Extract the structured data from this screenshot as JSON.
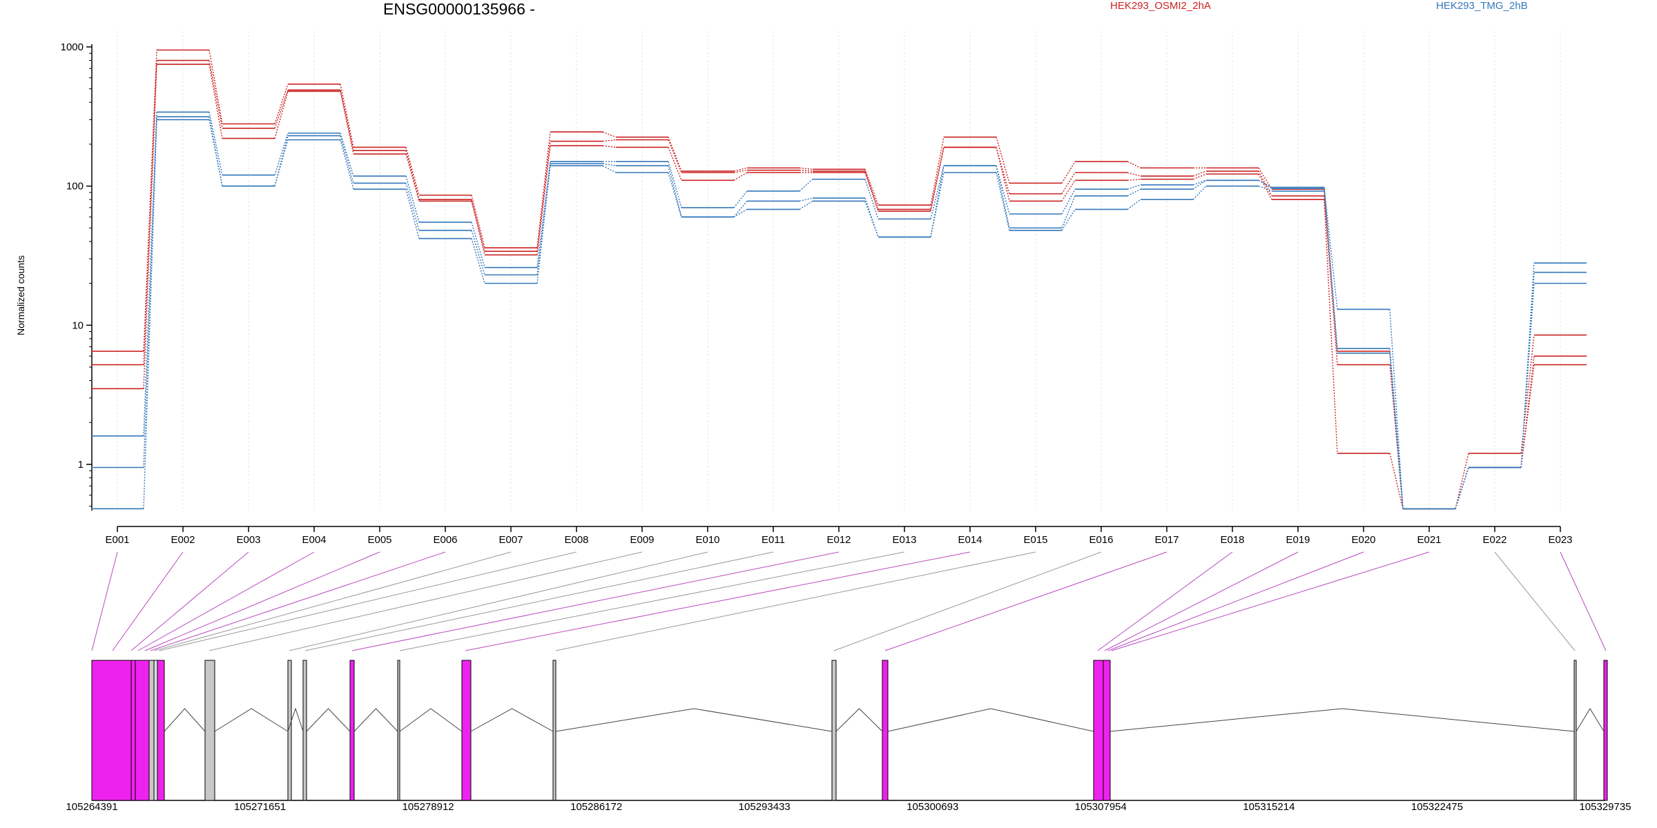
{
  "chart_data": {
    "type": "line",
    "title": "ENSG00000135966 -",
    "xlabel": "",
    "ylabel": "Normalized counts",
    "yscale": "log",
    "yticks": [
      "1",
      "10",
      "100",
      "1000"
    ],
    "categories": [
      "E001",
      "E002",
      "E003",
      "E004",
      "E005",
      "E006",
      "E007",
      "E008",
      "E009",
      "E010",
      "E011",
      "E012",
      "E013",
      "E014",
      "E015",
      "E016",
      "E017",
      "E018",
      "E019",
      "E020",
      "E021",
      "E022",
      "E023"
    ],
    "legend": [
      {
        "label": "HEK293_OSMI2_2hA",
        "color": "#cc2222"
      },
      {
        "label": "HEK293_TMG_2hB",
        "color": "#3377bb"
      }
    ],
    "series": [
      {
        "group": "red",
        "values": [
          6.5,
          950,
          280,
          540,
          190,
          86,
          36,
          245,
          225,
          128,
          135,
          132,
          73,
          225,
          105,
          150,
          135,
          135,
          95,
          6.5,
          0.48,
          1.2,
          8.5
        ]
      },
      {
        "group": "red",
        "values": [
          5.2,
          800,
          260,
          490,
          180,
          80,
          34,
          210,
          215,
          125,
          130,
          128,
          68,
          190,
          88,
          125,
          118,
          128,
          85,
          5.2,
          0.48,
          0.95,
          6.0
        ]
      },
      {
        "group": "red",
        "values": [
          3.5,
          750,
          220,
          480,
          170,
          78,
          32,
          195,
          190,
          110,
          125,
          125,
          66,
          190,
          78,
          110,
          112,
          122,
          80,
          1.2,
          0.48,
          0.95,
          5.2
        ]
      },
      {
        "group": "blue",
        "values": [
          1.6,
          340,
          120,
          240,
          118,
          55,
          26,
          150,
          150,
          70,
          92,
          112,
          58,
          140,
          63,
          95,
          102,
          110,
          98,
          13,
          0.48,
          0.95,
          28
        ]
      },
      {
        "group": "blue",
        "values": [
          0.95,
          315,
          100,
          230,
          105,
          48,
          23,
          145,
          140,
          60,
          78,
          82,
          43,
          140,
          50,
          85,
          95,
          110,
          96,
          6.8,
          0.48,
          0.95,
          24
        ]
      },
      {
        "group": "blue",
        "values": [
          0.48,
          300,
          100,
          215,
          95,
          42,
          20,
          140,
          125,
          60,
          68,
          78,
          43,
          125,
          48,
          68,
          80,
          100,
          92,
          6.3,
          0.48,
          0.95,
          20
        ]
      }
    ],
    "gene_model": {
      "coordinates": [
        "105264391",
        "105271651",
        "105278912",
        "105286172",
        "105293433",
        "105300693",
        "105307954",
        "105315214",
        "105322475",
        "105329735"
      ]
    }
  }
}
